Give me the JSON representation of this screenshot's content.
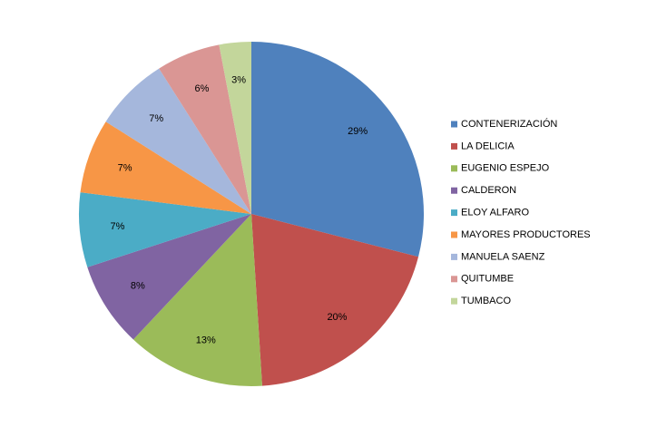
{
  "chart_data": {
    "type": "pie",
    "categories": [
      "CONTENERIZACIÓN",
      "LA DELICIA",
      "EUGENIO ESPEJO",
      "CALDERON",
      "ELOY ALFARO",
      "MAYORES PRODUCTORES",
      "MANUELA SAENZ",
      "QUITUMBE",
      "TUMBACO"
    ],
    "values": [
      29,
      20,
      13,
      8,
      7,
      7,
      7,
      6,
      3
    ],
    "value_labels": [
      "29%",
      "20%",
      "13%",
      "8%",
      "7%",
      "7%",
      "7%",
      "6%",
      "3%"
    ],
    "colors": [
      "#4F81BD",
      "#C0504D",
      "#9BBB59",
      "#8064A2",
      "#4BACC6",
      "#F79646",
      "#A5B7DC",
      "#DA9694",
      "#C3D69B"
    ],
    "legend": "right"
  }
}
